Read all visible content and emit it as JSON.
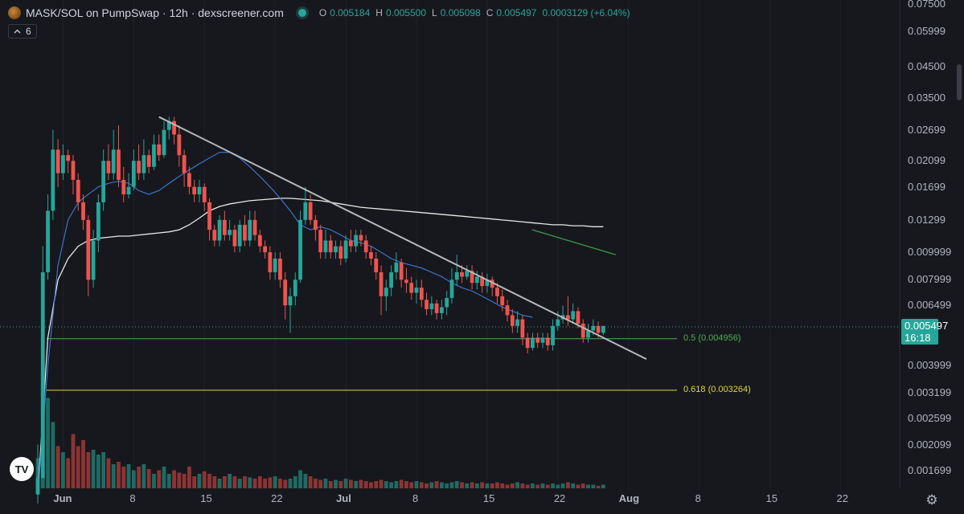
{
  "header": {
    "title": "MASK/SOL on PumpSwap · 12h · dexscreener.com",
    "ohlc": {
      "o_label": "O",
      "o": "0.005184",
      "h_label": "H",
      "h": "0.005500",
      "l_label": "L",
      "l": "0.005098",
      "c_label": "C",
      "c": "0.005497",
      "change": "0.0003129 (+6.04%)"
    },
    "indicator_count": "6",
    "collapse_icon": "chevron-up-icon"
  },
  "price_axis": {
    "ticks": [
      "0.07500",
      "0.05999",
      "0.04500",
      "0.03500",
      "0.02699",
      "0.02099",
      "0.01699",
      "0.01299",
      "0.009999",
      "0.007999",
      "0.006499",
      "0.003999",
      "0.003199",
      "0.002599",
      "0.002099",
      "0.001699"
    ],
    "current_price": "0.005497",
    "countdown": "16:18"
  },
  "time_axis": {
    "ticks": [
      "Jun",
      "8",
      "15",
      "22",
      "Jul",
      "8",
      "15",
      "22",
      "Aug",
      "8",
      "15",
      "22"
    ]
  },
  "fib_levels": [
    {
      "label": "0.5 (0.004956)",
      "value": 0.004956,
      "color": "#4caf50"
    },
    {
      "label": "0.618 (0.003264)",
      "value": 0.003264,
      "color": "#e0d53a"
    }
  ],
  "colors": {
    "up": "#26a69a",
    "down": "#ef5350",
    "background": "#17181d",
    "ma_white": "#e8e8e8",
    "ma_blue": "#3d7bd9",
    "ma_green": "#3c9a4a",
    "trendline": "#b8b8b8"
  },
  "icons": {
    "logo": "tradingview-logo-icon",
    "settings": "gear-icon",
    "pair": "mask-token-icon"
  },
  "chart_data": {
    "type": "candlestick",
    "pair": "MASK/SOL",
    "interval": "12h",
    "y_scale": "log",
    "ylim": [
      0.0014,
      0.075
    ],
    "x_start": "2025-05-29",
    "candles": [
      {
        "o": 0.0014,
        "c": 0.0016,
        "h": 0.0021,
        "l": 0.0013
      },
      {
        "o": 0.0016,
        "c": 0.0085,
        "h": 0.0105,
        "l": 0.0016
      },
      {
        "o": 0.0085,
        "c": 0.014,
        "h": 0.016,
        "l": 0.008
      },
      {
        "o": 0.014,
        "c": 0.023,
        "h": 0.027,
        "l": 0.013
      },
      {
        "o": 0.023,
        "c": 0.019,
        "h": 0.025,
        "l": 0.017
      },
      {
        "o": 0.019,
        "c": 0.022,
        "h": 0.024,
        "l": 0.018
      },
      {
        "o": 0.022,
        "c": 0.021,
        "h": 0.023,
        "l": 0.019
      },
      {
        "o": 0.021,
        "c": 0.018,
        "h": 0.022,
        "l": 0.016
      },
      {
        "o": 0.018,
        "c": 0.015,
        "h": 0.019,
        "l": 0.014
      },
      {
        "o": 0.015,
        "c": 0.013,
        "h": 0.016,
        "l": 0.012
      },
      {
        "o": 0.013,
        "c": 0.008,
        "h": 0.0135,
        "l": 0.007
      },
      {
        "o": 0.008,
        "c": 0.011,
        "h": 0.012,
        "l": 0.0075
      },
      {
        "o": 0.011,
        "c": 0.015,
        "h": 0.016,
        "l": 0.01
      },
      {
        "o": 0.015,
        "c": 0.021,
        "h": 0.023,
        "l": 0.014
      },
      {
        "o": 0.021,
        "c": 0.019,
        "h": 0.024,
        "l": 0.018
      },
      {
        "o": 0.019,
        "c": 0.023,
        "h": 0.027,
        "l": 0.018
      },
      {
        "o": 0.023,
        "c": 0.018,
        "h": 0.028,
        "l": 0.017
      },
      {
        "o": 0.018,
        "c": 0.016,
        "h": 0.02,
        "l": 0.015
      },
      {
        "o": 0.016,
        "c": 0.017,
        "h": 0.019,
        "l": 0.0155
      },
      {
        "o": 0.017,
        "c": 0.021,
        "h": 0.023,
        "l": 0.0165
      },
      {
        "o": 0.021,
        "c": 0.019,
        "h": 0.024,
        "l": 0.018
      },
      {
        "o": 0.019,
        "c": 0.022,
        "h": 0.025,
        "l": 0.018
      },
      {
        "o": 0.022,
        "c": 0.02,
        "h": 0.023,
        "l": 0.019
      },
      {
        "o": 0.02,
        "c": 0.024,
        "h": 0.026,
        "l": 0.0195
      },
      {
        "o": 0.024,
        "c": 0.022,
        "h": 0.026,
        "l": 0.021
      },
      {
        "o": 0.022,
        "c": 0.027,
        "h": 0.029,
        "l": 0.0215
      },
      {
        "o": 0.027,
        "c": 0.029,
        "h": 0.03,
        "l": 0.025
      },
      {
        "o": 0.029,
        "c": 0.026,
        "h": 0.03,
        "l": 0.024
      },
      {
        "o": 0.026,
        "c": 0.022,
        "h": 0.028,
        "l": 0.02
      },
      {
        "o": 0.022,
        "c": 0.019,
        "h": 0.023,
        "l": 0.017
      },
      {
        "o": 0.019,
        "c": 0.017,
        "h": 0.02,
        "l": 0.016
      },
      {
        "o": 0.017,
        "c": 0.016,
        "h": 0.018,
        "l": 0.015
      },
      {
        "o": 0.016,
        "c": 0.017,
        "h": 0.018,
        "l": 0.015
      },
      {
        "o": 0.017,
        "c": 0.015,
        "h": 0.0175,
        "l": 0.014
      },
      {
        "o": 0.015,
        "c": 0.012,
        "h": 0.0155,
        "l": 0.011
      },
      {
        "o": 0.012,
        "c": 0.011,
        "h": 0.0125,
        "l": 0.0105
      },
      {
        "o": 0.011,
        "c": 0.013,
        "h": 0.0135,
        "l": 0.0105
      },
      {
        "o": 0.013,
        "c": 0.0115,
        "h": 0.014,
        "l": 0.011
      },
      {
        "o": 0.0115,
        "c": 0.012,
        "h": 0.013,
        "l": 0.011
      },
      {
        "o": 0.012,
        "c": 0.0105,
        "h": 0.0125,
        "l": 0.01
      },
      {
        "o": 0.0105,
        "c": 0.0125,
        "h": 0.013,
        "l": 0.01
      },
      {
        "o": 0.0125,
        "c": 0.011,
        "h": 0.0135,
        "l": 0.0105
      },
      {
        "o": 0.011,
        "c": 0.013,
        "h": 0.014,
        "l": 0.0105
      },
      {
        "o": 0.013,
        "c": 0.0115,
        "h": 0.014,
        "l": 0.011
      },
      {
        "o": 0.0115,
        "c": 0.0105,
        "h": 0.012,
        "l": 0.01
      },
      {
        "o": 0.0105,
        "c": 0.01,
        "h": 0.011,
        "l": 0.0095
      },
      {
        "o": 0.01,
        "c": 0.0085,
        "h": 0.0105,
        "l": 0.008
      },
      {
        "o": 0.0085,
        "c": 0.0095,
        "h": 0.01,
        "l": 0.008
      },
      {
        "o": 0.0095,
        "c": 0.008,
        "h": 0.01,
        "l": 0.0075
      },
      {
        "o": 0.008,
        "c": 0.0065,
        "h": 0.0085,
        "l": 0.0058
      },
      {
        "o": 0.0065,
        "c": 0.007,
        "h": 0.0075,
        "l": 0.0052
      },
      {
        "o": 0.007,
        "c": 0.008,
        "h": 0.0085,
        "l": 0.0065
      },
      {
        "o": 0.008,
        "c": 0.013,
        "h": 0.014,
        "l": 0.0078
      },
      {
        "o": 0.013,
        "c": 0.015,
        "h": 0.017,
        "l": 0.0125
      },
      {
        "o": 0.015,
        "c": 0.013,
        "h": 0.016,
        "l": 0.0125
      },
      {
        "o": 0.013,
        "c": 0.012,
        "h": 0.0135,
        "l": 0.011
      },
      {
        "o": 0.012,
        "c": 0.01,
        "h": 0.0125,
        "l": 0.0095
      },
      {
        "o": 0.01,
        "c": 0.011,
        "h": 0.012,
        "l": 0.0095
      },
      {
        "o": 0.011,
        "c": 0.01,
        "h": 0.0115,
        "l": 0.0095
      },
      {
        "o": 0.01,
        "c": 0.0105,
        "h": 0.011,
        "l": 0.0095
      },
      {
        "o": 0.0105,
        "c": 0.0095,
        "h": 0.011,
        "l": 0.009
      },
      {
        "o": 0.0095,
        "c": 0.011,
        "h": 0.0115,
        "l": 0.0092
      },
      {
        "o": 0.011,
        "c": 0.0105,
        "h": 0.012,
        "l": 0.01
      },
      {
        "o": 0.0105,
        "c": 0.0115,
        "h": 0.012,
        "l": 0.01
      },
      {
        "o": 0.0115,
        "c": 0.011,
        "h": 0.012,
        "l": 0.0105
      },
      {
        "o": 0.011,
        "c": 0.01,
        "h": 0.0115,
        "l": 0.0095
      },
      {
        "o": 0.01,
        "c": 0.0095,
        "h": 0.0105,
        "l": 0.009
      },
      {
        "o": 0.0095,
        "c": 0.0085,
        "h": 0.01,
        "l": 0.008
      },
      {
        "o": 0.0085,
        "c": 0.007,
        "h": 0.009,
        "l": 0.006
      },
      {
        "o": 0.007,
        "c": 0.0075,
        "h": 0.008,
        "l": 0.0062
      },
      {
        "o": 0.0075,
        "c": 0.0085,
        "h": 0.009,
        "l": 0.007
      },
      {
        "o": 0.0085,
        "c": 0.0092,
        "h": 0.01,
        "l": 0.008
      },
      {
        "o": 0.0092,
        "c": 0.008,
        "h": 0.0095,
        "l": 0.0075
      },
      {
        "o": 0.008,
        "c": 0.0078,
        "h": 0.0088,
        "l": 0.0072
      },
      {
        "o": 0.0078,
        "c": 0.0072,
        "h": 0.0082,
        "l": 0.0068
      },
      {
        "o": 0.0072,
        "c": 0.0075,
        "h": 0.008,
        "l": 0.0066
      },
      {
        "o": 0.0075,
        "c": 0.0068,
        "h": 0.008,
        "l": 0.0064
      },
      {
        "o": 0.0068,
        "c": 0.0063,
        "h": 0.0072,
        "l": 0.006
      },
      {
        "o": 0.0063,
        "c": 0.0066,
        "h": 0.007,
        "l": 0.006
      },
      {
        "o": 0.0066,
        "c": 0.0061,
        "h": 0.0068,
        "l": 0.0058
      },
      {
        "o": 0.0061,
        "c": 0.0064,
        "h": 0.0068,
        "l": 0.0058
      },
      {
        "o": 0.0064,
        "c": 0.0069,
        "h": 0.0073,
        "l": 0.006
      },
      {
        "o": 0.0069,
        "c": 0.008,
        "h": 0.0088,
        "l": 0.0066
      },
      {
        "o": 0.008,
        "c": 0.0085,
        "h": 0.0098,
        "l": 0.0076
      },
      {
        "o": 0.0085,
        "c": 0.0082,
        "h": 0.009,
        "l": 0.0078
      },
      {
        "o": 0.0082,
        "c": 0.0086,
        "h": 0.009,
        "l": 0.008
      },
      {
        "o": 0.0086,
        "c": 0.0078,
        "h": 0.009,
        "l": 0.0074
      },
      {
        "o": 0.0078,
        "c": 0.0082,
        "h": 0.0086,
        "l": 0.0074
      },
      {
        "o": 0.0082,
        "c": 0.0076,
        "h": 0.0085,
        "l": 0.0072
      },
      {
        "o": 0.0076,
        "c": 0.008,
        "h": 0.0084,
        "l": 0.0072
      },
      {
        "o": 0.008,
        "c": 0.0075,
        "h": 0.0082,
        "l": 0.007
      },
      {
        "o": 0.0075,
        "c": 0.007,
        "h": 0.0078,
        "l": 0.0066
      },
      {
        "o": 0.007,
        "c": 0.0065,
        "h": 0.0074,
        "l": 0.0062
      },
      {
        "o": 0.0065,
        "c": 0.006,
        "h": 0.0068,
        "l": 0.0057
      },
      {
        "o": 0.006,
        "c": 0.0055,
        "h": 0.0063,
        "l": 0.0052
      },
      {
        "o": 0.0055,
        "c": 0.0058,
        "h": 0.0062,
        "l": 0.0052
      },
      {
        "o": 0.0058,
        "c": 0.005,
        "h": 0.006,
        "l": 0.0047
      },
      {
        "o": 0.005,
        "c": 0.0046,
        "h": 0.0052,
        "l": 0.0044
      },
      {
        "o": 0.0046,
        "c": 0.005,
        "h": 0.0052,
        "l": 0.0045
      },
      {
        "o": 0.005,
        "c": 0.0048,
        "h": 0.0052,
        "l": 0.0046
      },
      {
        "o": 0.0048,
        "c": 0.005,
        "h": 0.0052,
        "l": 0.0046
      },
      {
        "o": 0.005,
        "c": 0.0047,
        "h": 0.0052,
        "l": 0.0045
      },
      {
        "o": 0.0047,
        "c": 0.0055,
        "h": 0.0058,
        "l": 0.0045
      },
      {
        "o": 0.0055,
        "c": 0.0058,
        "h": 0.0062,
        "l": 0.0053
      },
      {
        "o": 0.0058,
        "c": 0.006,
        "h": 0.0065,
        "l": 0.0056
      },
      {
        "o": 0.006,
        "c": 0.0058,
        "h": 0.007,
        "l": 0.0055
      },
      {
        "o": 0.0058,
        "c": 0.0062,
        "h": 0.0066,
        "l": 0.0056
      },
      {
        "o": 0.0062,
        "c": 0.0056,
        "h": 0.0064,
        "l": 0.0054
      },
      {
        "o": 0.0056,
        "c": 0.005,
        "h": 0.0058,
        "l": 0.0048
      },
      {
        "o": 0.005,
        "c": 0.0053,
        "h": 0.0056,
        "l": 0.0048
      },
      {
        "o": 0.0053,
        "c": 0.0055,
        "h": 0.0058,
        "l": 0.0051
      },
      {
        "o": 0.0055,
        "c": 0.0052,
        "h": 0.0057,
        "l": 0.005
      },
      {
        "o": 0.0052,
        "c": 0.0055,
        "h": 0.0055,
        "l": 0.0051
      }
    ],
    "volume": [
      0.25,
      1.0,
      0.75,
      0.55,
      0.35,
      0.3,
      0.25,
      0.45,
      0.35,
      0.4,
      0.3,
      0.32,
      0.28,
      0.3,
      0.25,
      0.2,
      0.22,
      0.18,
      0.2,
      0.15,
      0.18,
      0.2,
      0.16,
      0.12,
      0.15,
      0.18,
      0.12,
      0.15,
      0.13,
      0.12,
      0.18,
      0.1,
      0.12,
      0.14,
      0.12,
      0.1,
      0.08,
      0.1,
      0.12,
      0.1,
      0.08,
      0.1,
      0.09,
      0.08,
      0.1,
      0.08,
      0.09,
      0.1,
      0.08,
      0.07,
      0.08,
      0.1,
      0.15,
      0.12,
      0.1,
      0.08,
      0.07,
      0.08,
      0.06,
      0.07,
      0.06,
      0.08,
      0.07,
      0.06,
      0.07,
      0.06,
      0.05,
      0.06,
      0.07,
      0.06,
      0.05,
      0.06,
      0.07,
      0.06,
      0.05,
      0.06,
      0.05,
      0.04,
      0.05,
      0.06,
      0.05,
      0.04,
      0.05,
      0.06,
      0.05,
      0.04,
      0.05,
      0.04,
      0.05,
      0.04,
      0.04,
      0.05,
      0.04,
      0.03,
      0.04,
      0.05,
      0.04,
      0.03,
      0.04,
      0.03,
      0.04,
      0.03,
      0.04,
      0.03,
      0.04,
      0.05,
      0.04,
      0.03,
      0.04,
      0.03,
      0.03,
      0.02,
      0.03
    ],
    "ma_long_white": [
      0.0014,
      0.005,
      0.008,
      0.0095,
      0.0105,
      0.011,
      0.0112,
      0.0113,
      0.0114,
      0.0114,
      0.0115,
      0.0116,
      0.0117,
      0.0118,
      0.012,
      0.0125,
      0.0132,
      0.014,
      0.0145,
      0.0148,
      0.015,
      0.0152,
      0.0153,
      0.0154,
      0.0155,
      0.0155,
      0.0154,
      0.0153,
      0.0152,
      0.015,
      0.0148,
      0.0146,
      0.0144,
      0.0143,
      0.0142,
      0.0141,
      0.014,
      0.0139,
      0.0138,
      0.0137,
      0.0136,
      0.0135,
      0.0134,
      0.0133,
      0.0132,
      0.0131,
      0.013,
      0.0129,
      0.0128,
      0.0127,
      0.0126,
      0.0125,
      0.0125,
      0.0124,
      0.0124,
      0.0123,
      0.0123
    ],
    "ma_blue": [
      0.0014,
      0.004,
      0.009,
      0.013,
      0.015,
      0.016,
      0.017,
      0.0175,
      0.0178,
      0.0175,
      0.0165,
      0.016,
      0.0165,
      0.0175,
      0.0185,
      0.0195,
      0.0205,
      0.0215,
      0.0225,
      0.0225,
      0.0215,
      0.02,
      0.0185,
      0.017,
      0.0155,
      0.014,
      0.0125,
      0.012,
      0.0123,
      0.012,
      0.0115,
      0.011,
      0.0108,
      0.0105,
      0.01,
      0.0095,
      0.0092,
      0.009,
      0.0088,
      0.0085,
      0.0082,
      0.0078,
      0.0075,
      0.0073,
      0.007,
      0.0067,
      0.0064,
      0.0062,
      0.006,
      0.0059
    ],
    "ma_green": [
      0.012,
      0.0098
    ],
    "trendline": {
      "from": 0.03,
      "to": 0.0042
    }
  }
}
